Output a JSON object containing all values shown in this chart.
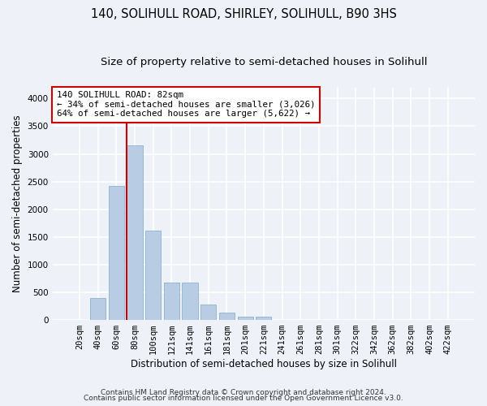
{
  "title": "140, SOLIHULL ROAD, SHIRLEY, SOLIHULL, B90 3HS",
  "subtitle": "Size of property relative to semi-detached houses in Solihull",
  "xlabel": "Distribution of semi-detached houses by size in Solihull",
  "ylabel": "Number of semi-detached properties",
  "footer1": "Contains HM Land Registry data © Crown copyright and database right 2024.",
  "footer2": "Contains public sector information licensed under the Open Government Licence v3.0.",
  "bar_labels": [
    "20sqm",
    "40sqm",
    "60sqm",
    "80sqm",
    "100sqm",
    "121sqm",
    "141sqm",
    "161sqm",
    "181sqm",
    "201sqm",
    "221sqm",
    "241sqm",
    "261sqm",
    "281sqm",
    "301sqm",
    "322sqm",
    "342sqm",
    "362sqm",
    "382sqm",
    "402sqm",
    "422sqm"
  ],
  "bar_values": [
    0,
    400,
    2420,
    3150,
    1620,
    680,
    680,
    280,
    130,
    65,
    60,
    0,
    0,
    0,
    0,
    0,
    0,
    0,
    0,
    0,
    0
  ],
  "bar_color": "#b8cce4",
  "bar_edge_color": "#7faacd",
  "highlight_bar_index": 3,
  "highlight_line_color": "#cc0000",
  "annotation_line1": "140 SOLIHULL ROAD: 82sqm",
  "annotation_line2": "← 34% of semi-detached houses are smaller (3,026)",
  "annotation_line3": "64% of semi-detached houses are larger (5,622) →",
  "annotation_box_color": "#ffffff",
  "annotation_box_edge_color": "#cc0000",
  "ylim": [
    0,
    4200
  ],
  "yticks": [
    0,
    500,
    1000,
    1500,
    2000,
    2500,
    3000,
    3500,
    4000
  ],
  "background_color": "#eef2f8",
  "grid_color": "#ffffff",
  "title_fontsize": 10.5,
  "subtitle_fontsize": 9.5,
  "xlabel_fontsize": 8.5,
  "ylabel_fontsize": 8.5,
  "tick_fontsize": 7.5,
  "footer_fontsize": 6.5
}
